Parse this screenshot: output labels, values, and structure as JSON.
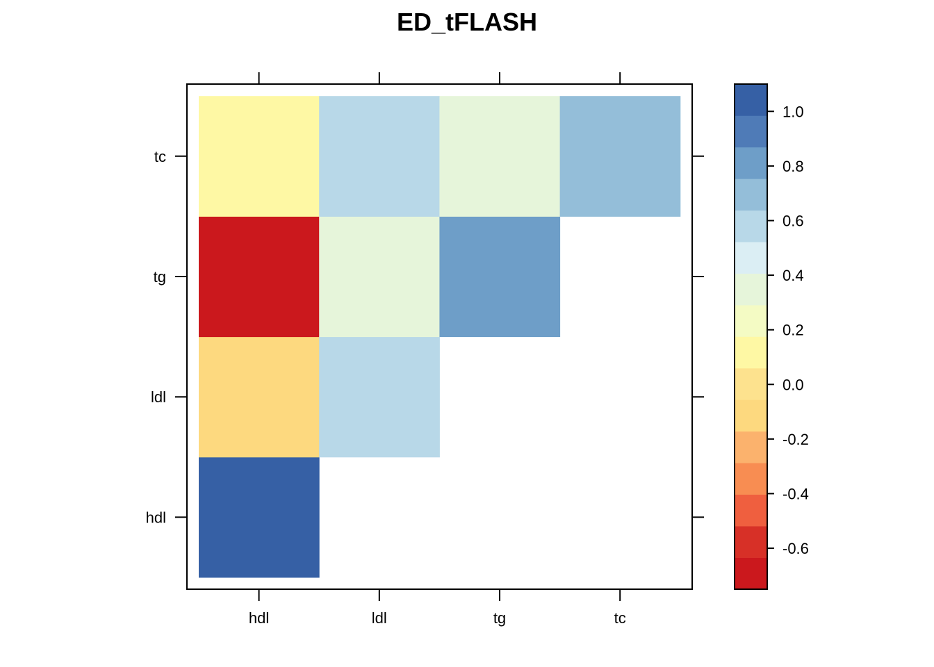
{
  "chart_data": {
    "type": "heatmap",
    "title": "ED_tFLASH",
    "xlabel": "",
    "ylabel": "",
    "x_categories": [
      "hdl",
      "ldl",
      "tg",
      "tc"
    ],
    "y_categories": [
      "hdl",
      "ldl",
      "tg",
      "tc"
    ],
    "cells": [
      {
        "x": "hdl",
        "y": "hdl",
        "value": 1.0
      },
      {
        "x": "hdl",
        "y": "ldl",
        "value": -0.1
      },
      {
        "x": "hdl",
        "y": "tg",
        "value": -0.7
      },
      {
        "x": "hdl",
        "y": "tc",
        "value": 0.15
      },
      {
        "x": "ldl",
        "y": "ldl",
        "value": 0.6
      },
      {
        "x": "ldl",
        "y": "tg",
        "value": 0.4
      },
      {
        "x": "ldl",
        "y": "tc",
        "value": 0.6
      },
      {
        "x": "tg",
        "y": "tg",
        "value": 0.8
      },
      {
        "x": "tg",
        "y": "tc",
        "value": 0.4
      },
      {
        "x": "tc",
        "y": "tc",
        "value": 0.7
      }
    ],
    "colorbar": {
      "range": [
        -0.75,
        1.1
      ],
      "ticks": [
        1.0,
        0.8,
        0.6,
        0.4,
        0.2,
        0.0,
        -0.2,
        -0.4,
        -0.6
      ],
      "tick_labels": [
        "1.0",
        "0.8",
        "0.6",
        "0.4",
        "0.2",
        "0.0",
        "-0.2",
        "-0.4",
        "-0.6"
      ],
      "colors": [
        "#cb181d",
        "#d73027",
        "#ef5f3f",
        "#f88d52",
        "#fbb26d",
        "#fdd97f",
        "#fde28e",
        "#fef8a4",
        "#f4fbc4",
        "#e6f5da",
        "#dbeef4",
        "#b8d8e8",
        "#94bed9",
        "#6e9ec8",
        "#4f7bb7",
        "#3660a5"
      ]
    },
    "grid": false
  }
}
